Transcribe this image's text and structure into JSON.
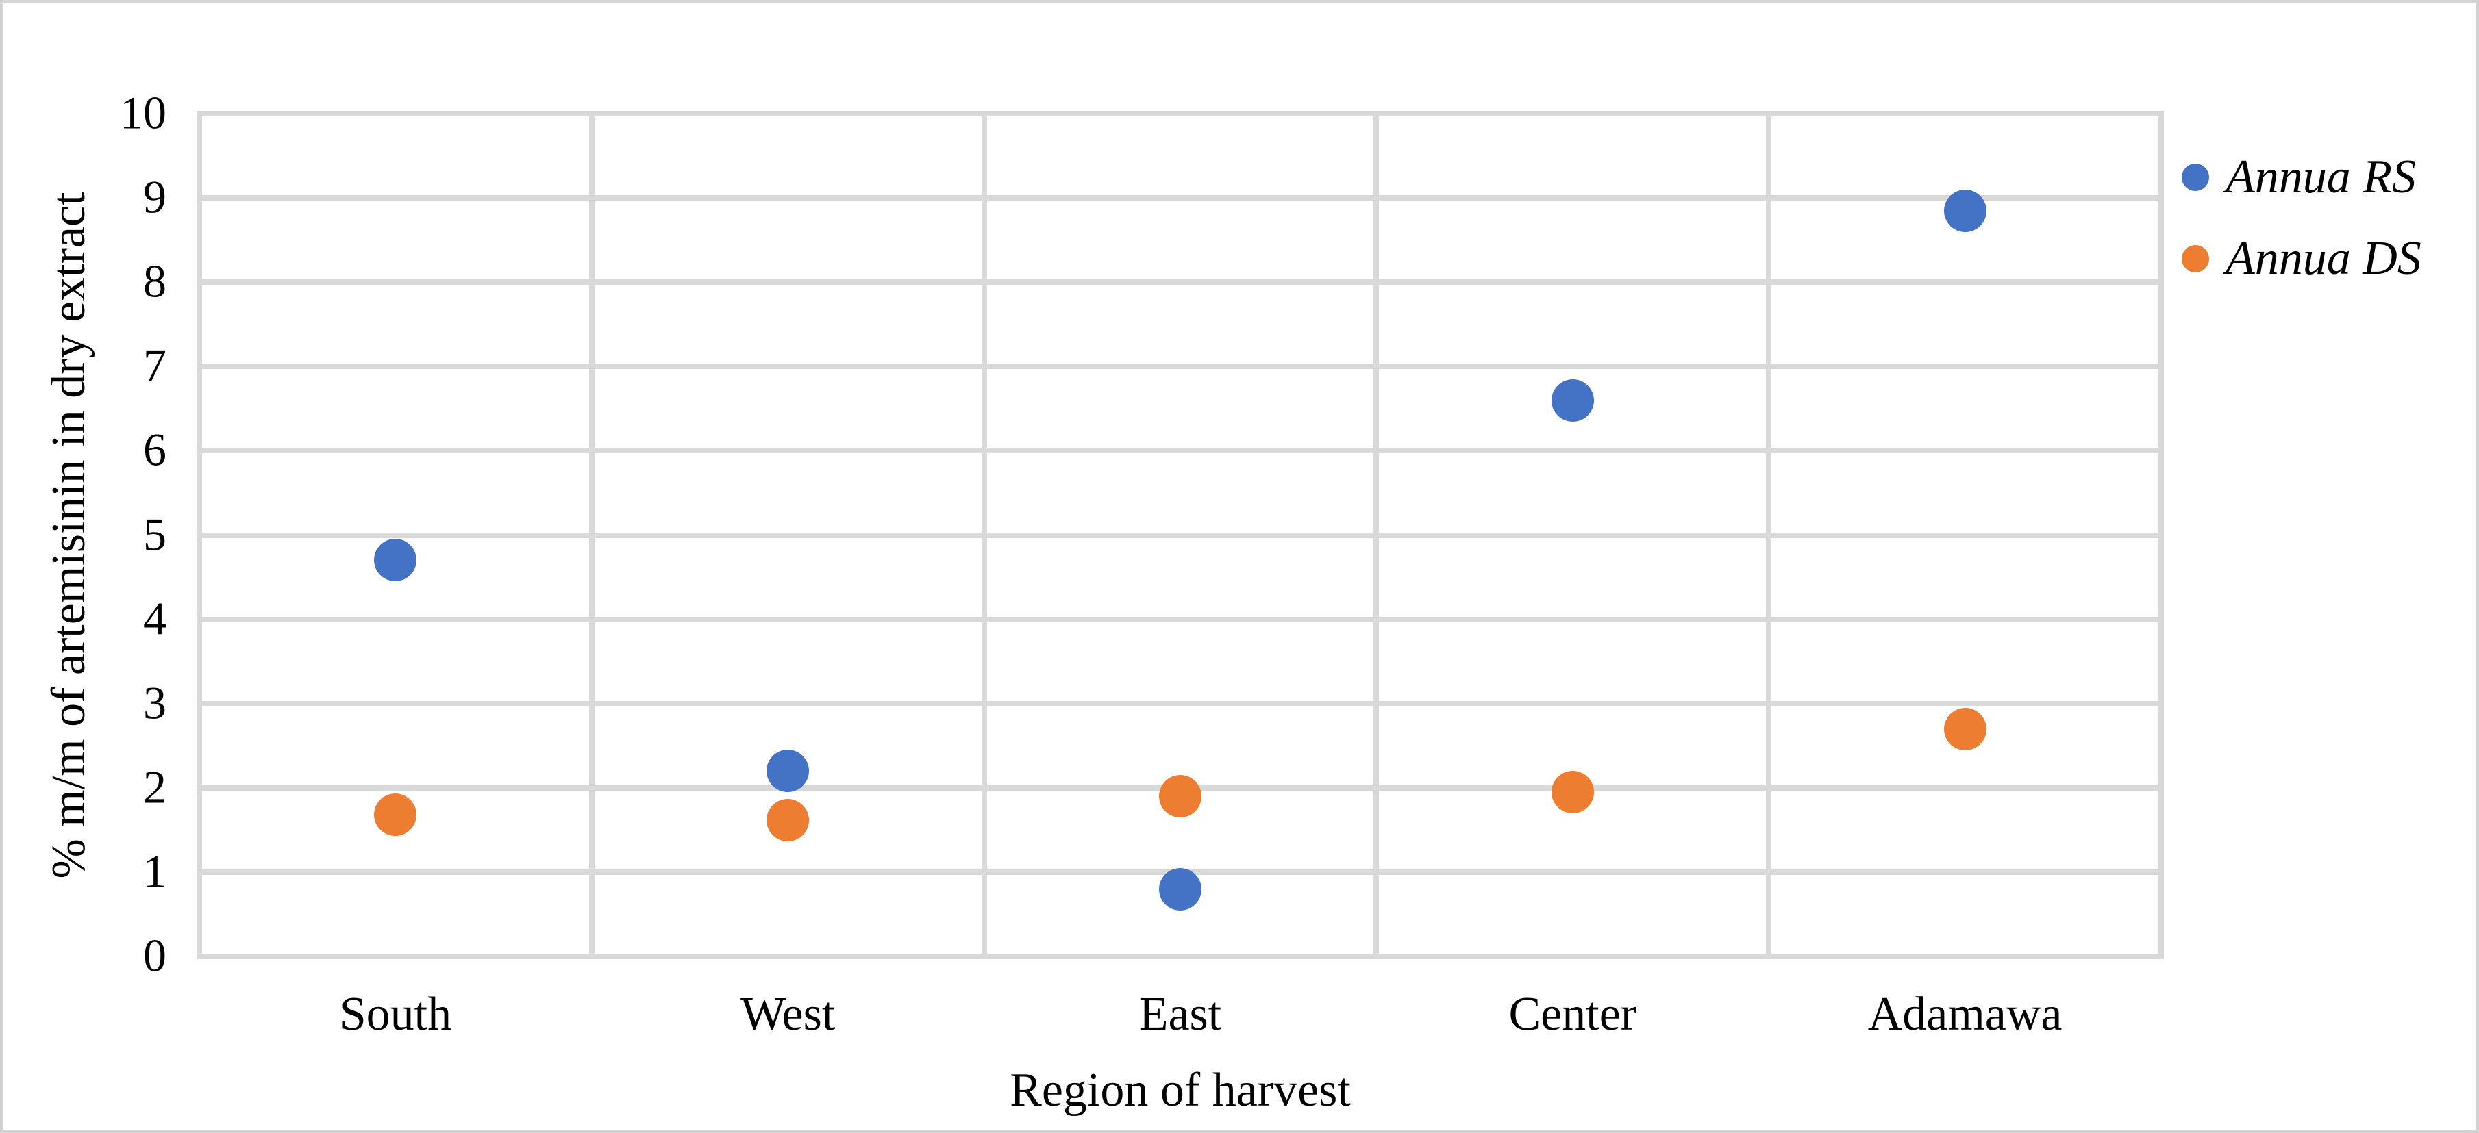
{
  "chart_data": {
    "type": "scatter",
    "title": "",
    "categories": [
      "South",
      "West",
      "East",
      "Center",
      "Adamawa"
    ],
    "series": [
      {
        "name": "Annua RS",
        "color": "#4472C4",
        "values": [
          4.7,
          2.2,
          0.8,
          6.6,
          8.85
        ]
      },
      {
        "name": "Annua DS",
        "color": "#ED7D31",
        "values": [
          1.68,
          1.62,
          1.9,
          1.95,
          2.7
        ]
      }
    ],
    "xlabel": "Region of harvest",
    "ylabel": "% m/m of artemisinin in dry extract",
    "ylim": [
      0,
      10
    ],
    "yticks": [
      0,
      1,
      2,
      3,
      4,
      5,
      6,
      7,
      8,
      9,
      10
    ],
    "grid": true,
    "gridline_color": "#D9D9D9",
    "text_color": "#000000",
    "legend_position": "right",
    "legend_style": "italic"
  }
}
